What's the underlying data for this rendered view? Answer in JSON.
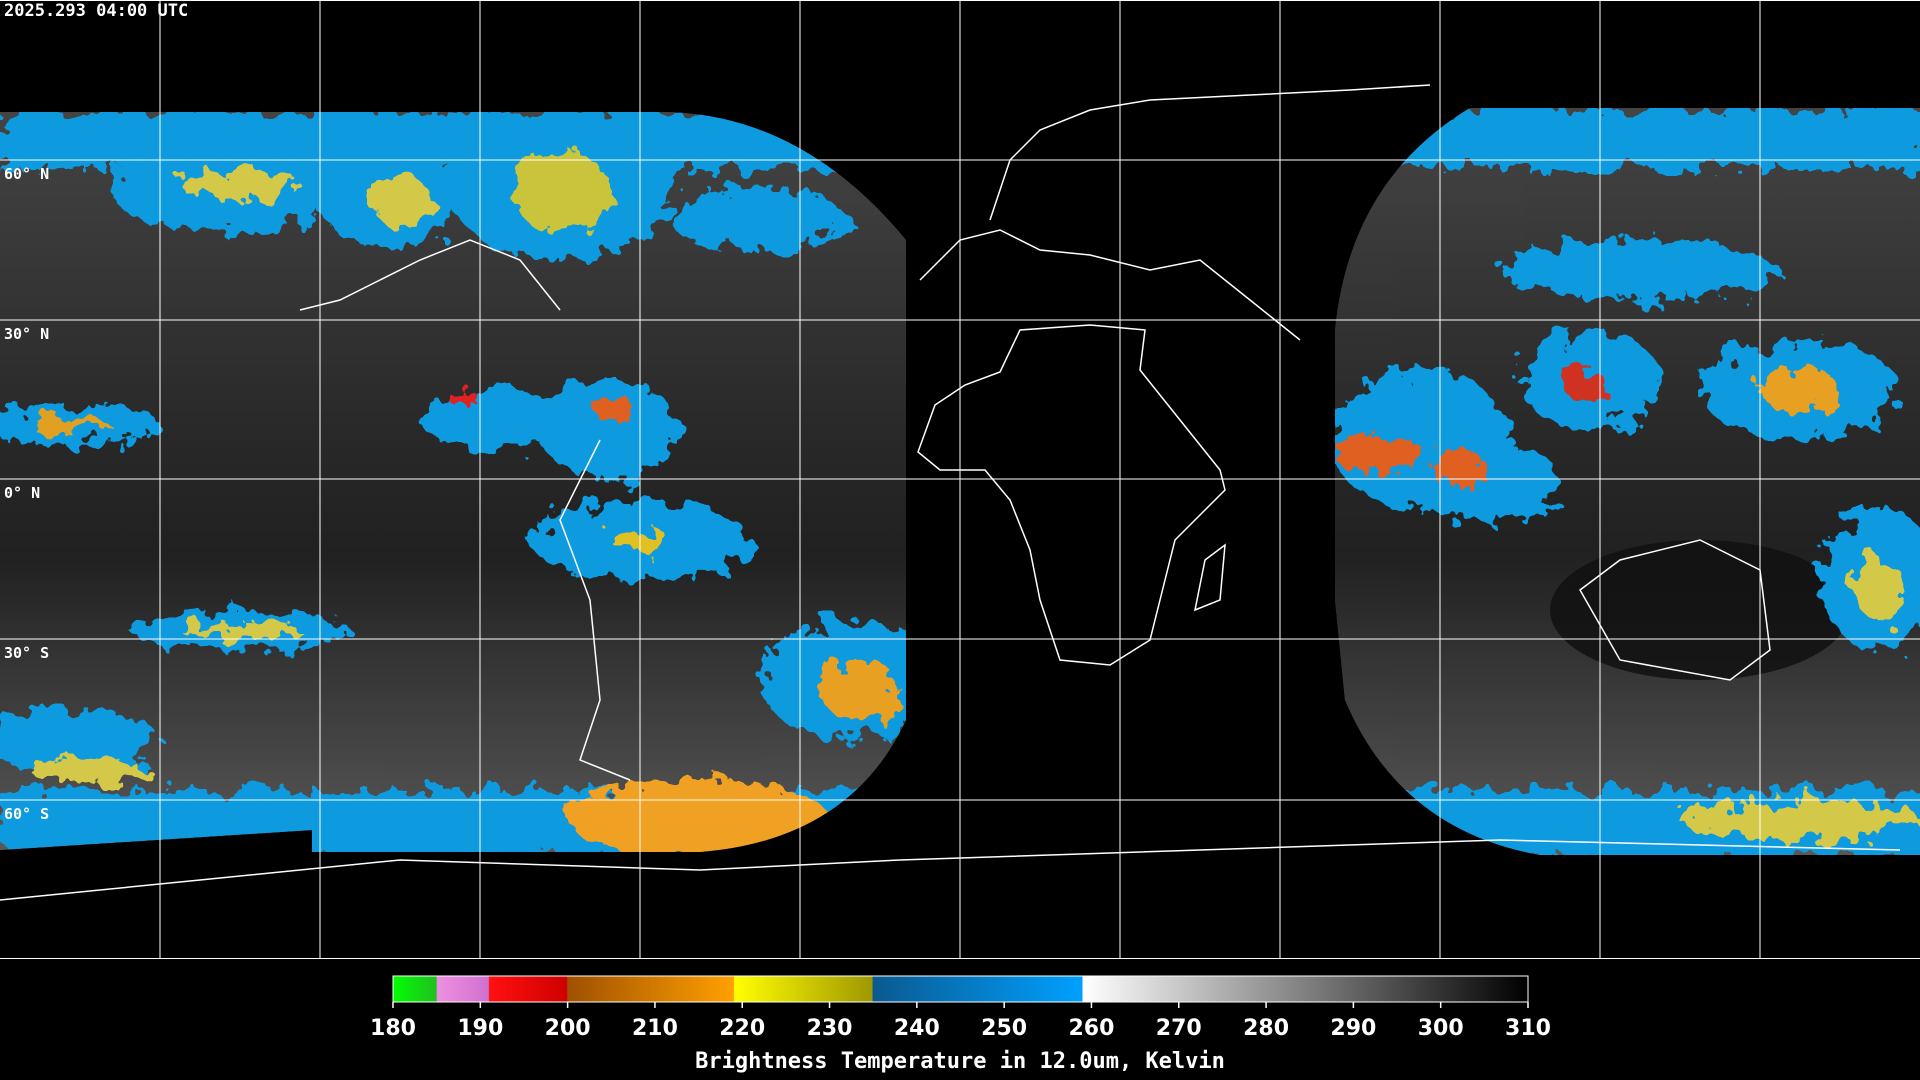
{
  "header": {
    "timestamp": "2025.293 04:00 UTC"
  },
  "map": {
    "latitude_labels": [
      "60° N",
      "30° N",
      "0° N",
      "30° S",
      "60° S"
    ]
  },
  "colorbar": {
    "ticks": [
      180,
      190,
      200,
      210,
      220,
      230,
      240,
      250,
      260,
      270,
      280,
      290,
      300,
      310
    ],
    "label": "Brightness Temperature in 12.0um, Kelvin"
  }
}
